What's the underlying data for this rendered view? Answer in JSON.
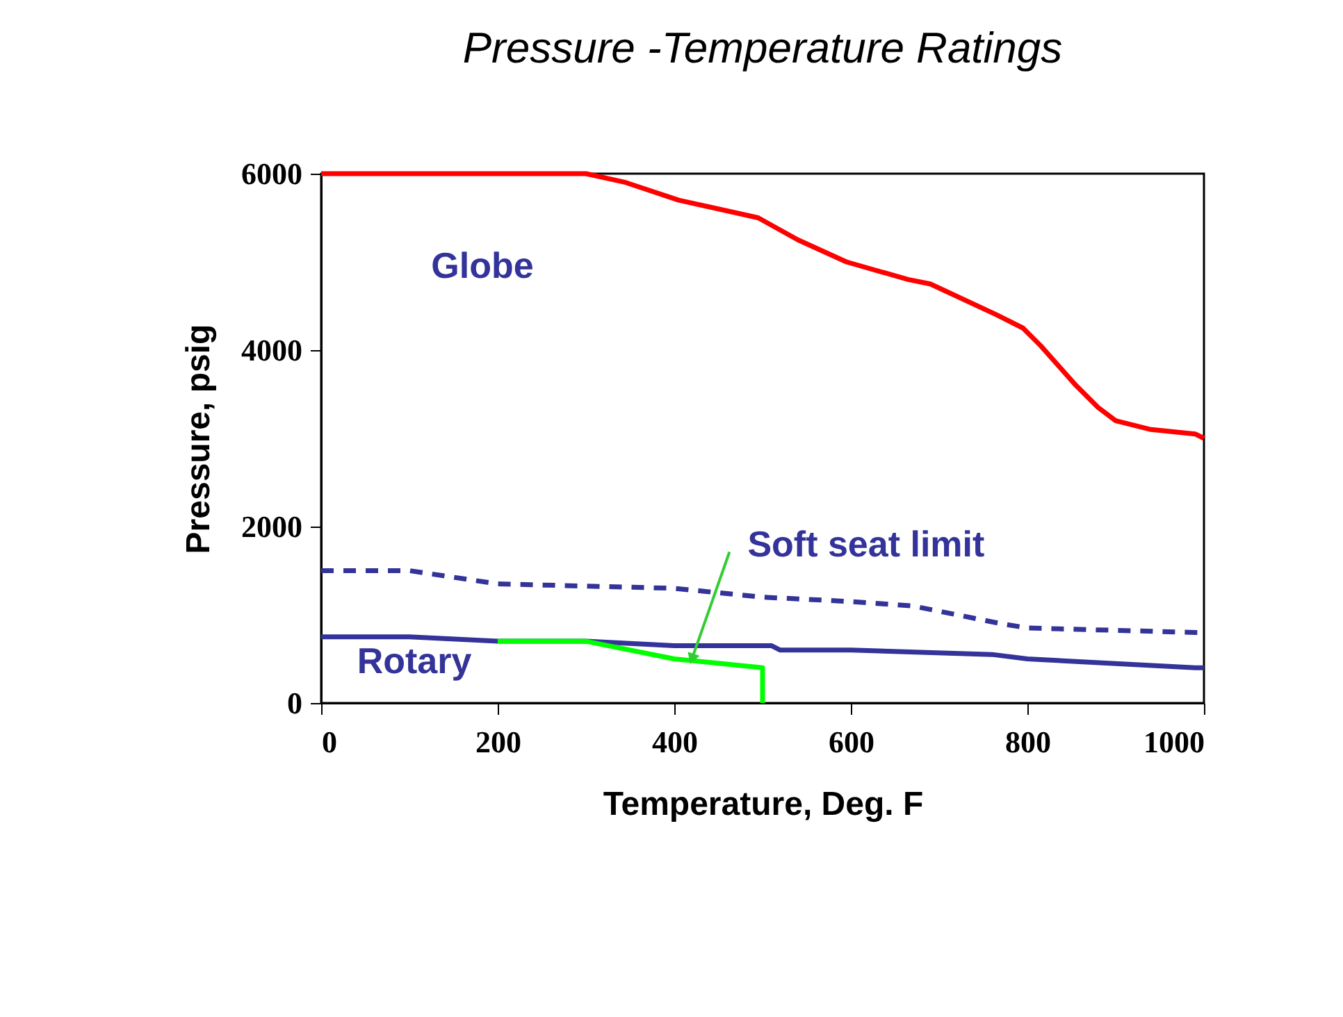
{
  "chart_data": {
    "type": "line",
    "title": "Pressure -Temperature Ratings",
    "xlabel": "Temperature, Deg. F",
    "ylabel": "Pressure, psig",
    "xlim": [
      0,
      1000
    ],
    "xticks": [
      0,
      200,
      400,
      600,
      800,
      1000
    ],
    "ylim": [
      0,
      6000
    ],
    "yticks": [
      0,
      2000,
      4000,
      6000
    ],
    "grid": false,
    "marker": "none",
    "series": [
      {
        "color": "#ff0000",
        "line_style": "solid",
        "x": [
          0,
          100,
          200,
          300,
          345,
          405,
          495,
          540,
          595,
          665,
          690,
          765,
          795,
          815,
          855,
          880,
          900,
          940,
          990,
          1000
        ],
        "values": [
          6000,
          6000,
          6000,
          6000,
          5900,
          5700,
          5500,
          5250,
          5000,
          4800,
          4750,
          4400,
          4250,
          4050,
          3600,
          3350,
          3200,
          3100,
          3050,
          3000
        ]
      },
      {
        "color": "#333399",
        "line_style": "dashed",
        "x": [
          0,
          100,
          200,
          400,
          500,
          600,
          670,
          770,
          800,
          990,
          1000
        ],
        "values": [
          1500,
          1500,
          1350,
          1300,
          1200,
          1150,
          1100,
          900,
          850,
          800,
          800
        ]
      },
      {
        "color": "#333399",
        "line_style": "solid",
        "x": [
          0,
          100,
          200,
          300,
          400,
          510,
          520,
          600,
          760,
          800,
          990,
          1000
        ],
        "values": [
          750,
          750,
          700,
          700,
          650,
          650,
          600,
          600,
          550,
          500,
          400,
          400
        ]
      },
      {
        "color": "#00ff00",
        "line_style": "solid",
        "x": [
          200,
          300,
          400,
          500,
          500
        ],
        "values": [
          700,
          700,
          500,
          400,
          0
        ]
      }
    ],
    "annotations": [
      "Globe",
      "Rotary",
      {
        "text": "Soft seat limit",
        "x": 420,
        "y": 500
      }
    ]
  }
}
